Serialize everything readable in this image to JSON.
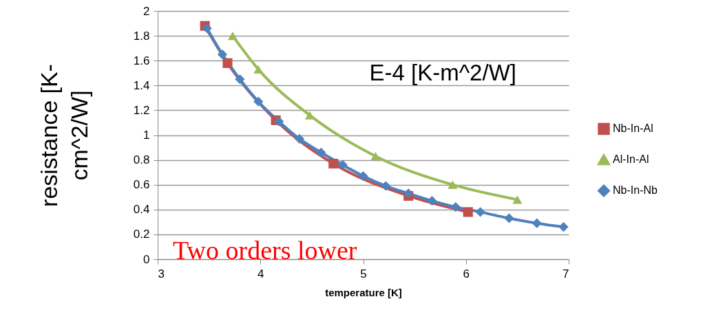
{
  "chart_data": {
    "type": "line",
    "xlabel": "temperature [K]",
    "ylabel": "resistance [K-cm^2/W]",
    "xlim": [
      3,
      7
    ],
    "xticks": [
      3,
      4,
      5,
      6,
      7
    ],
    "ylim": [
      0,
      2
    ],
    "yticks": [
      0,
      0.2,
      0.4,
      0.6,
      0.8,
      1,
      1.2,
      1.4,
      1.6,
      1.8,
      2
    ],
    "grid": "y",
    "legend": "right",
    "annotations": [
      "E-4 [K-m^2/W]",
      "Two orders lower"
    ],
    "series": [
      {
        "name": "Nb-In-Al",
        "color": "#c0504d",
        "marker": "square",
        "x": [
          3.46,
          3.68,
          4.15,
          4.71,
          5.44,
          6.02
        ],
        "values": [
          1.88,
          1.58,
          1.12,
          0.77,
          0.51,
          0.38
        ]
      },
      {
        "name": "Al-In-Al",
        "color": "#9bbb59",
        "marker": "triangle",
        "x": [
          3.73,
          3.98,
          4.48,
          5.12,
          5.87,
          6.5
        ],
        "values": [
          1.8,
          1.53,
          1.16,
          0.83,
          0.6,
          0.48
        ]
      },
      {
        "name": "Nb-In-Nb",
        "color": "#4f81bd",
        "marker": "diamond",
        "x": [
          3.48,
          3.63,
          3.8,
          3.98,
          4.18,
          4.38,
          4.59,
          4.8,
          5.0,
          5.22,
          5.44,
          5.67,
          5.9,
          6.14,
          6.42,
          6.69,
          6.95
        ],
        "values": [
          1.86,
          1.65,
          1.45,
          1.27,
          1.11,
          0.97,
          0.86,
          0.76,
          0.67,
          0.59,
          0.53,
          0.47,
          0.42,
          0.38,
          0.33,
          0.29,
          0.26
        ]
      }
    ]
  }
}
